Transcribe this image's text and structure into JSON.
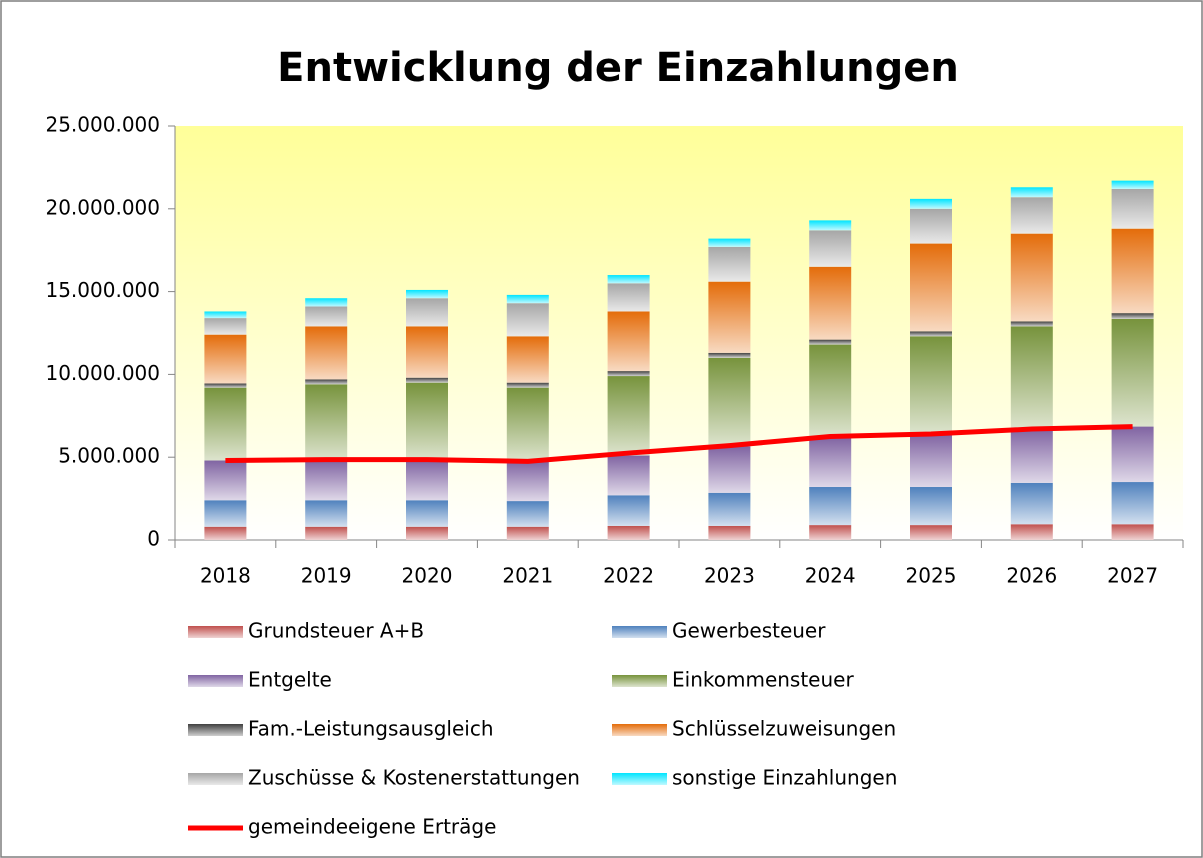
{
  "chart_data": {
    "type": "bar",
    "stacked": true,
    "title": "Entwicklung der Einzahlungen",
    "categories": [
      "2018",
      "2019",
      "2020",
      "2021",
      "2022",
      "2023",
      "2024",
      "2025",
      "2026",
      "2027"
    ],
    "ylim": [
      0,
      25000000
    ],
    "yticks": [
      0,
      {
        "value": 5000000,
        "label": "5.000.000"
      },
      {
        "value": 10000000,
        "label": "10.000.000"
      },
      {
        "value": 15000000,
        "label": "15.000.000"
      },
      {
        "value": 20000000,
        "label": "20.000.000"
      },
      {
        "value": 25000000,
        "label": "25.000.000"
      }
    ],
    "series": [
      {
        "name": "Grundsteuer A+B",
        "color": "#c0504d",
        "values": [
          800000,
          800000,
          800000,
          800000,
          850000,
          850000,
          900000,
          900000,
          950000,
          950000
        ]
      },
      {
        "name": "Gewerbesteuer",
        "color": "#4f81bd",
        "values": [
          1600000,
          1600000,
          1600000,
          1550000,
          1850000,
          2000000,
          2300000,
          2300000,
          2500000,
          2550000
        ]
      },
      {
        "name": "Entgelte",
        "color": "#8064a2",
        "values": [
          2400000,
          2400000,
          2400000,
          2400000,
          2400000,
          2800000,
          3000000,
          3200000,
          3250000,
          3350000
        ]
      },
      {
        "name": "Einkommensteuer",
        "color": "#77933c",
        "values": [
          4400000,
          4600000,
          4700000,
          4450000,
          4800000,
          5350000,
          5600000,
          5900000,
          6200000,
          6500000
        ]
      },
      {
        "name": "Fam.-Leistungsausgleich",
        "color": "#404040",
        "values": [
          250000,
          300000,
          300000,
          300000,
          300000,
          300000,
          300000,
          300000,
          300000,
          350000
        ]
      },
      {
        "name": "Schlüsselzuweisungen",
        "color": "#e46c0a",
        "values": [
          2950000,
          3200000,
          3100000,
          2800000,
          3600000,
          4300000,
          4400000,
          5300000,
          5300000,
          5100000
        ]
      },
      {
        "name": "Zuschüsse & Kostenerstattungen",
        "color": "#a6a6a6",
        "values": [
          1000000,
          1200000,
          1700000,
          2000000,
          1700000,
          2100000,
          2200000,
          2100000,
          2200000,
          2400000
        ]
      },
      {
        "name": "sonstige Einzahlungen",
        "color": "#00e5ff",
        "values": [
          400000,
          500000,
          500000,
          500000,
          500000,
          500000,
          600000,
          600000,
          600000,
          500000
        ]
      },
      {
        "name": "gemeindeeigene Erträge",
        "color": "#ff0000",
        "type": "line",
        "values": [
          4800000,
          4850000,
          4850000,
          4750000,
          5250000,
          5700000,
          6250000,
          6400000,
          6700000,
          6850000
        ]
      }
    ]
  }
}
